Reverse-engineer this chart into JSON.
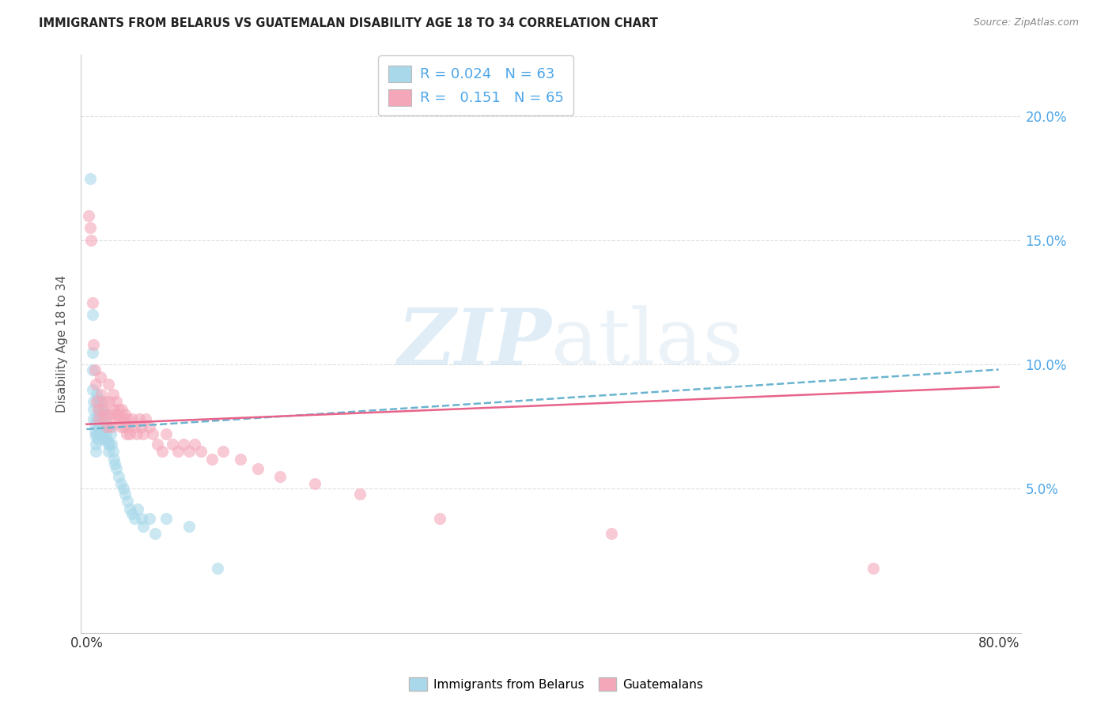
{
  "title": "IMMIGRANTS FROM BELARUS VS GUATEMALAN DISABILITY AGE 18 TO 34 CORRELATION CHART",
  "source": "Source: ZipAtlas.com",
  "ylabel": "Disability Age 18 to 34",
  "watermark_zip": "ZIP",
  "watermark_atlas": "atlas",
  "legend_entries": [
    {
      "label": "Immigrants from Belarus",
      "R": "0.024",
      "N": "63",
      "color": "#a8d8ea"
    },
    {
      "label": "Guatemalans",
      "R": "0.151",
      "N": "65",
      "color": "#f4a7b9"
    }
  ],
  "y_tick_vals": [
    0.05,
    0.1,
    0.15,
    0.2
  ],
  "y_tick_labels": [
    "5.0%",
    "10.0%",
    "15.0%",
    "20.0%"
  ],
  "x_tick_vals": [
    0.0,
    0.2,
    0.4,
    0.6,
    0.8
  ],
  "x_tick_labels": [
    "0.0%",
    "",
    "",
    "",
    "80.0%"
  ],
  "belarus_color": "#a8d8ea",
  "guatemalan_color": "#f4a7b9",
  "belarus_line_color": "#6ab4d0",
  "guatemalan_line_color": "#e8628a",
  "background_color": "#ffffff",
  "grid_color": "#e0e0e0",
  "right_tick_color": "#4da6e8",
  "belarus_scatter_x": [
    0.003,
    0.005,
    0.005,
    0.005,
    0.005,
    0.006,
    0.006,
    0.006,
    0.007,
    0.007,
    0.008,
    0.008,
    0.008,
    0.009,
    0.009,
    0.009,
    0.01,
    0.01,
    0.01,
    0.01,
    0.011,
    0.011,
    0.012,
    0.012,
    0.012,
    0.013,
    0.013,
    0.014,
    0.014,
    0.015,
    0.015,
    0.016,
    0.016,
    0.017,
    0.017,
    0.018,
    0.018,
    0.019,
    0.019,
    0.02,
    0.02,
    0.021,
    0.022,
    0.023,
    0.024,
    0.025,
    0.026,
    0.028,
    0.03,
    0.032,
    0.034,
    0.036,
    0.038,
    0.04,
    0.042,
    0.045,
    0.048,
    0.05,
    0.055,
    0.06,
    0.07,
    0.09,
    0.115
  ],
  "belarus_scatter_y": [
    0.175,
    0.12,
    0.105,
    0.098,
    0.09,
    0.085,
    0.082,
    0.078,
    0.076,
    0.073,
    0.071,
    0.068,
    0.065,
    0.088,
    0.078,
    0.072,
    0.086,
    0.08,
    0.075,
    0.07,
    0.082,
    0.075,
    0.085,
    0.078,
    0.072,
    0.08,
    0.074,
    0.082,
    0.075,
    0.08,
    0.073,
    0.075,
    0.07,
    0.078,
    0.072,
    0.075,
    0.07,
    0.068,
    0.065,
    0.075,
    0.068,
    0.072,
    0.068,
    0.065,
    0.062,
    0.06,
    0.058,
    0.055,
    0.052,
    0.05,
    0.048,
    0.045,
    0.042,
    0.04,
    0.038,
    0.042,
    0.038,
    0.035,
    0.038,
    0.032,
    0.038,
    0.035,
    0.018
  ],
  "guatemalan_scatter_x": [
    0.002,
    0.003,
    0.004,
    0.005,
    0.006,
    0.007,
    0.008,
    0.009,
    0.01,
    0.011,
    0.012,
    0.013,
    0.014,
    0.015,
    0.016,
    0.017,
    0.018,
    0.019,
    0.02,
    0.021,
    0.022,
    0.023,
    0.024,
    0.025,
    0.026,
    0.027,
    0.028,
    0.029,
    0.03,
    0.031,
    0.032,
    0.033,
    0.034,
    0.035,
    0.036,
    0.037,
    0.038,
    0.04,
    0.042,
    0.044,
    0.046,
    0.048,
    0.05,
    0.052,
    0.055,
    0.058,
    0.062,
    0.066,
    0.07,
    0.075,
    0.08,
    0.085,
    0.09,
    0.095,
    0.1,
    0.11,
    0.12,
    0.135,
    0.15,
    0.17,
    0.2,
    0.24,
    0.31,
    0.46,
    0.69
  ],
  "guatemalan_scatter_y": [
    0.16,
    0.155,
    0.15,
    0.125,
    0.108,
    0.098,
    0.092,
    0.085,
    0.082,
    0.078,
    0.095,
    0.088,
    0.082,
    0.078,
    0.085,
    0.08,
    0.075,
    0.092,
    0.085,
    0.08,
    0.075,
    0.088,
    0.082,
    0.078,
    0.085,
    0.08,
    0.082,
    0.078,
    0.075,
    0.082,
    0.078,
    0.075,
    0.08,
    0.072,
    0.078,
    0.075,
    0.072,
    0.078,
    0.075,
    0.072,
    0.078,
    0.075,
    0.072,
    0.078,
    0.075,
    0.072,
    0.068,
    0.065,
    0.072,
    0.068,
    0.065,
    0.068,
    0.065,
    0.068,
    0.065,
    0.062,
    0.065,
    0.062,
    0.058,
    0.055,
    0.052,
    0.048,
    0.038,
    0.032,
    0.018
  ],
  "belarus_trend_x": [
    0.0,
    0.8
  ],
  "belarus_trend_y": [
    0.074,
    0.098
  ],
  "guatemalan_trend_x": [
    0.0,
    0.8
  ],
  "guatemalan_trend_y": [
    0.076,
    0.091
  ],
  "xlim": [
    -0.005,
    0.82
  ],
  "ylim": [
    -0.008,
    0.225
  ],
  "scatter_size": 120,
  "scatter_alpha": 0.6
}
